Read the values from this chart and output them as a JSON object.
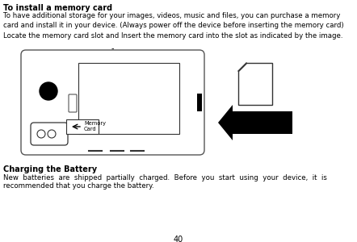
{
  "background_color": "#ffffff",
  "page_number": "40",
  "title1": "To install a memory card",
  "body1": "To have additional storage for your images, videos, music and files, you can purchase a memory\ncard and install it in your device. (Always power off the device before inserting the memory card)\nLocate the memory card slot and Insert the memory card into the slot as indicated by the image.",
  "title2": "Charging the Battery",
  "body2_line1": "New  batteries  are  shipped  partially  charged.  Before  you  start  using  your  device,  it  is",
  "body2_line2": "recommended that you charge the battery.",
  "font_color": "#000000",
  "fs_title": 7.0,
  "fs_body": 6.2,
  "fs_page": 7.0
}
